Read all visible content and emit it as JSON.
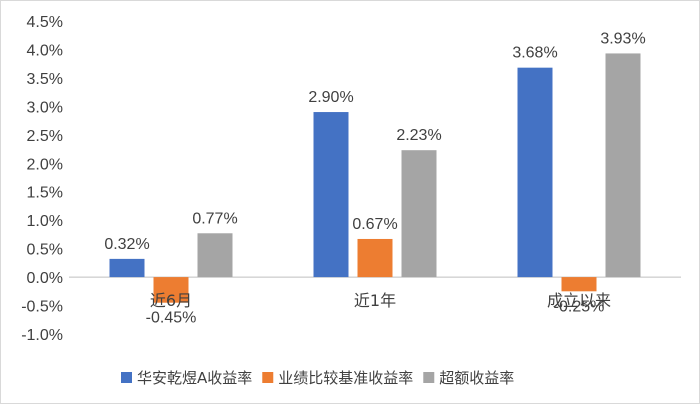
{
  "chart_data": {
    "type": "bar",
    "categories": [
      "近6月",
      "近1年",
      "成立以来"
    ],
    "series": [
      {
        "name": "华安乾煜A收益率",
        "values": [
          0.32,
          2.9,
          3.68
        ],
        "labels": [
          "0.32%",
          "2.90%",
          "3.68%"
        ],
        "color": "#4472C4"
      },
      {
        "name": "业绩比较基准收益率",
        "values": [
          -0.45,
          0.67,
          -0.25
        ],
        "labels": [
          "-0.45%",
          "0.67%",
          "-0.25%"
        ],
        "color": "#ED7D31"
      },
      {
        "name": "超额收益率",
        "values": [
          0.77,
          2.23,
          3.93
        ],
        "labels": [
          "0.77%",
          "2.23%",
          "3.93%"
        ],
        "color": "#A5A5A5"
      }
    ],
    "ylim": [
      -1.0,
      4.5
    ],
    "ytick_values": [
      -1.0,
      -0.5,
      0.0,
      0.5,
      1.0,
      1.5,
      2.0,
      2.5,
      3.0,
      3.5,
      4.0,
      4.5
    ],
    "ytick_labels": [
      "-1.0%",
      "-0.5%",
      "0.0%",
      "0.5%",
      "1.0%",
      "1.5%",
      "2.0%",
      "2.5%",
      "3.0%",
      "3.5%",
      "4.0%",
      "4.5%"
    ],
    "grid": false,
    "legend_position": "bottom",
    "title": "",
    "xlabel": "",
    "ylabel": ""
  }
}
